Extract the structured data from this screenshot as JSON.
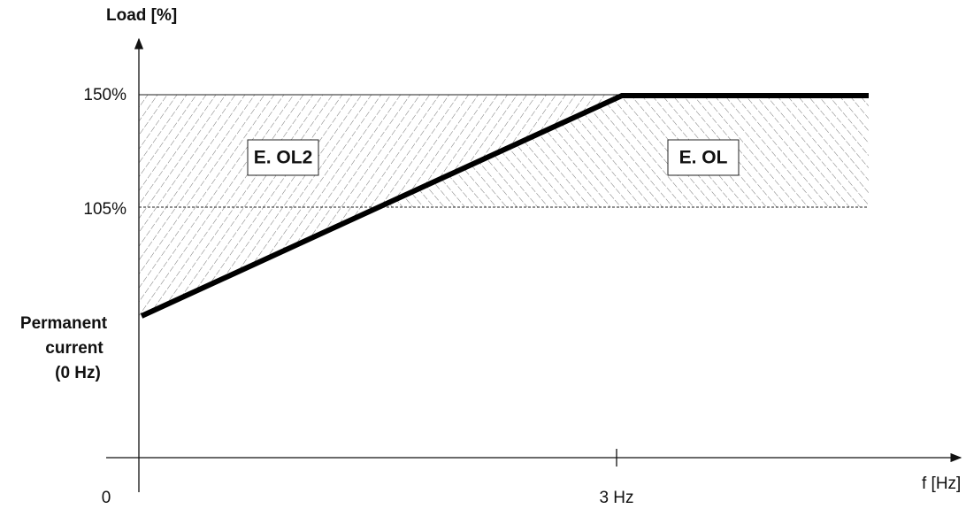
{
  "axes": {
    "y_label": "Load [%]",
    "x_label": "f [Hz]"
  },
  "y_ticks": [
    "150%",
    "105%"
  ],
  "permanent_current": [
    "Permanent",
    "current",
    "(0 Hz)"
  ],
  "x_ticks": [
    "0",
    "3 Hz"
  ],
  "regions": [
    "E. OL2",
    "E. OL"
  ]
}
